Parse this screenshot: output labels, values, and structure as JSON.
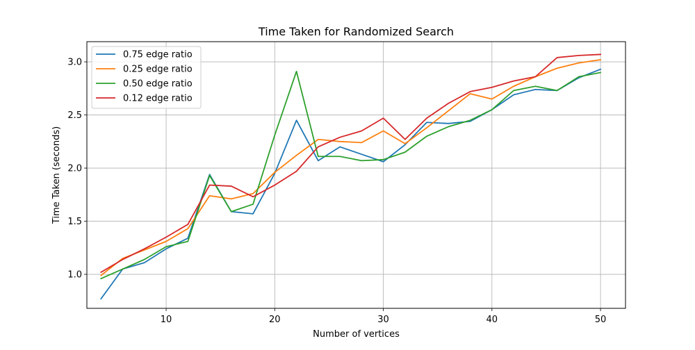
{
  "chart_data": {
    "type": "line",
    "title": "Time Taken for Randomized Search",
    "xlabel": "Number of vertices",
    "ylabel": "Time Taken (seconds)",
    "xlim": [
      2.7,
      52.3
    ],
    "ylim": [
      0.68,
      3.19
    ],
    "xticks": [
      10,
      20,
      30,
      40,
      50
    ],
    "xtick_labels": [
      "10",
      "20",
      "30",
      "40",
      "50"
    ],
    "yticks": [
      1.0,
      1.5,
      2.0,
      2.5,
      3.0
    ],
    "ytick_labels": [
      "1.0",
      "1.5",
      "2.0",
      "2.5",
      "3.0"
    ],
    "grid": true,
    "legend_position": "top-left",
    "x": [
      4,
      6,
      8,
      10,
      12,
      14,
      16,
      18,
      20,
      22,
      24,
      26,
      28,
      30,
      32,
      34,
      36,
      38,
      40,
      42,
      44,
      46,
      48,
      50
    ],
    "series": [
      {
        "name": "0.75 edge ratio",
        "color": "#1f77b4",
        "values": [
          0.77,
          1.05,
          1.11,
          1.24,
          1.34,
          1.94,
          1.59,
          1.57,
          1.95,
          2.45,
          2.07,
          2.2,
          2.13,
          2.06,
          2.22,
          2.43,
          2.42,
          2.44,
          2.55,
          2.69,
          2.74,
          2.73,
          2.85,
          2.93
        ]
      },
      {
        "name": "0.25 edge ratio",
        "color": "#ff7f0e",
        "values": [
          0.99,
          1.15,
          1.23,
          1.31,
          1.43,
          1.74,
          1.71,
          1.76,
          1.96,
          2.12,
          2.27,
          2.25,
          2.24,
          2.35,
          2.23,
          2.38,
          2.54,
          2.7,
          2.65,
          2.77,
          2.86,
          2.94,
          2.99,
          3.02
        ]
      },
      {
        "name": "0.50 edge ratio",
        "color": "#2ca02c",
        "values": [
          0.96,
          1.05,
          1.14,
          1.26,
          1.31,
          1.93,
          1.59,
          1.66,
          2.31,
          2.91,
          2.11,
          2.11,
          2.07,
          2.08,
          2.15,
          2.3,
          2.39,
          2.45,
          2.55,
          2.73,
          2.77,
          2.73,
          2.86,
          2.9
        ]
      },
      {
        "name": "0.12 edge ratio",
        "color": "#d62728",
        "values": [
          1.02,
          1.14,
          1.24,
          1.35,
          1.47,
          1.84,
          1.83,
          1.73,
          1.84,
          1.97,
          2.2,
          2.29,
          2.35,
          2.47,
          2.27,
          2.47,
          2.61,
          2.72,
          2.76,
          2.82,
          2.86,
          3.04,
          3.06,
          3.07
        ]
      }
    ]
  }
}
